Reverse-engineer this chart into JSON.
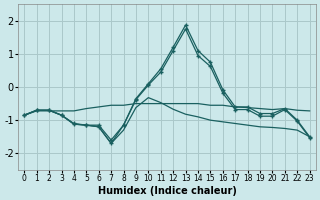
{
  "xlabel": "Humidex (Indice chaleur)",
  "background_color": "#cce8ea",
  "grid_color": "#aac8ca",
  "line_color": "#1a6060",
  "x": [
    0,
    1,
    2,
    3,
    4,
    5,
    6,
    7,
    8,
    9,
    10,
    11,
    12,
    13,
    14,
    15,
    16,
    17,
    18,
    19,
    20,
    21,
    22,
    23
  ],
  "line1_marked": [
    -0.85,
    -0.7,
    -0.7,
    -0.85,
    -1.1,
    -1.15,
    -1.15,
    -1.6,
    -1.15,
    -0.35,
    0.1,
    0.55,
    1.2,
    1.87,
    1.1,
    0.75,
    -0.08,
    -0.6,
    -0.6,
    -0.8,
    -0.8,
    -0.65,
    -1.0,
    -1.5
  ],
  "line2_flat": [
    -0.85,
    -0.72,
    -0.72,
    -0.72,
    -0.72,
    -0.65,
    -0.6,
    -0.55,
    -0.55,
    -0.5,
    -0.5,
    -0.5,
    -0.5,
    -0.5,
    -0.5,
    -0.55,
    -0.55,
    -0.6,
    -0.62,
    -0.65,
    -0.68,
    -0.65,
    -0.7,
    -0.72
  ],
  "line3_marked": [
    -0.85,
    -0.7,
    -0.7,
    -0.85,
    -1.12,
    -1.15,
    -1.2,
    -1.7,
    -1.15,
    -0.38,
    0.06,
    0.45,
    1.1,
    1.75,
    0.95,
    0.62,
    -0.18,
    -0.68,
    -0.68,
    -0.88,
    -0.88,
    -0.68,
    -1.03,
    -1.53
  ],
  "line4_bottom": [
    -0.85,
    -0.7,
    -0.7,
    -0.85,
    -1.12,
    -1.15,
    -1.2,
    -1.7,
    -1.3,
    -0.62,
    -0.32,
    -0.47,
    -0.67,
    -0.82,
    -0.9,
    -1.0,
    -1.05,
    -1.1,
    -1.15,
    -1.2,
    -1.22,
    -1.25,
    -1.3,
    -1.5
  ],
  "ylim": [
    -2.5,
    2.5
  ],
  "yticks": [
    -2,
    -1,
    0,
    1,
    2
  ],
  "xlim": [
    -0.5,
    23.5
  ],
  "xticks": [
    0,
    1,
    2,
    3,
    4,
    5,
    6,
    7,
    8,
    9,
    10,
    11,
    12,
    13,
    14,
    15,
    16,
    17,
    18,
    19,
    20,
    21,
    22,
    23
  ]
}
